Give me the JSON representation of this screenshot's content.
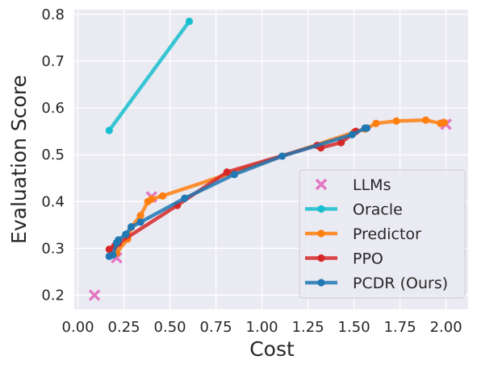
{
  "chart_data": {
    "type": "line",
    "xlabel": "Cost",
    "ylabel": "Evaluation Score",
    "xlim": [
      -0.02,
      2.12
    ],
    "ylim": [
      0.17,
      0.81
    ],
    "xticks": [
      "0.00",
      "0.25",
      "0.50",
      "0.75",
      "1.00",
      "1.25",
      "1.50",
      "1.75",
      "2.00"
    ],
    "xtick_values": [
      0,
      0.25,
      0.5,
      0.75,
      1.0,
      1.25,
      1.5,
      1.75,
      2.0
    ],
    "yticks": [
      "0.2",
      "0.3",
      "0.4",
      "0.5",
      "0.6",
      "0.7",
      "0.8"
    ],
    "ytick_values": [
      0.2,
      0.3,
      0.4,
      0.5,
      0.6,
      0.7,
      0.8
    ],
    "grid": true,
    "legend_position": "lower-right",
    "series": [
      {
        "name": "LLMs",
        "kind": "scatter",
        "marker": "x",
        "color": "#e377c2",
        "points": [
          [
            0.09,
            0.2
          ],
          [
            0.21,
            0.28
          ],
          [
            0.4,
            0.41
          ],
          [
            2.0,
            0.565
          ]
        ]
      },
      {
        "name": "Oracle",
        "kind": "line",
        "color": "#17becf",
        "points": [
          [
            0.17,
            0.552
          ],
          [
            0.605,
            0.785
          ]
        ]
      },
      {
        "name": "Predictor",
        "kind": "line",
        "color": "#ff7f0e",
        "points": [
          [
            0.21,
            0.29
          ],
          [
            0.27,
            0.32
          ],
          [
            0.29,
            0.345
          ],
          [
            0.34,
            0.37
          ],
          [
            0.38,
            0.4
          ],
          [
            0.4,
            0.405
          ],
          [
            0.46,
            0.412
          ],
          [
            1.5,
            0.548
          ],
          [
            1.56,
            0.555
          ],
          [
            1.62,
            0.567
          ],
          [
            1.73,
            0.572
          ],
          [
            1.89,
            0.574
          ],
          [
            1.97,
            0.567
          ],
          [
            1.99,
            0.569
          ]
        ]
      },
      {
        "name": "PPO",
        "kind": "line",
        "color": "#d62728",
        "points": [
          [
            0.17,
            0.298
          ],
          [
            0.2,
            0.305
          ],
          [
            0.22,
            0.311
          ],
          [
            0.54,
            0.392
          ],
          [
            0.81,
            0.463
          ],
          [
            1.3,
            0.52
          ],
          [
            1.32,
            0.515
          ],
          [
            1.43,
            0.526
          ],
          [
            1.51,
            0.55
          ]
        ]
      },
      {
        "name": "PCDR (Ours)",
        "kind": "line",
        "color": "#1f77b4",
        "points": [
          [
            0.17,
            0.283
          ],
          [
            0.19,
            0.286
          ],
          [
            0.21,
            0.312
          ],
          [
            0.22,
            0.318
          ],
          [
            0.26,
            0.33
          ],
          [
            0.29,
            0.346
          ],
          [
            0.34,
            0.356
          ],
          [
            0.58,
            0.407
          ],
          [
            0.85,
            0.458
          ],
          [
            1.11,
            0.497
          ],
          [
            1.49,
            0.543
          ],
          [
            1.56,
            0.557
          ],
          [
            1.57,
            0.557
          ]
        ]
      }
    ]
  }
}
